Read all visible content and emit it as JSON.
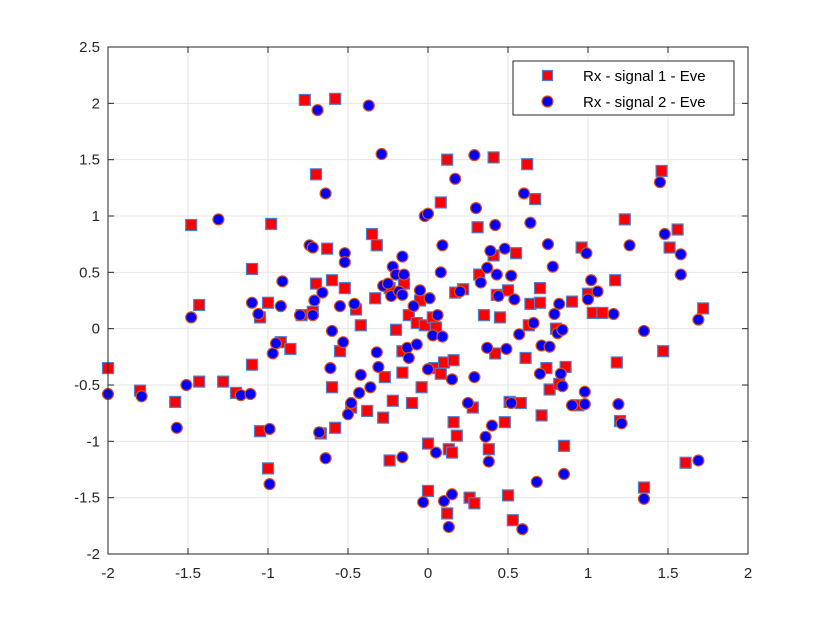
{
  "chart_data": {
    "type": "scatter",
    "title": "",
    "xlabel": "",
    "ylabel": "",
    "xlim": [
      -2,
      2
    ],
    "ylim": [
      -2,
      2.5
    ],
    "xticks": [
      -2,
      -1.5,
      -1,
      -0.5,
      0,
      0.5,
      1,
      1.5,
      2
    ],
    "xtick_labels": [
      "-2",
      "-1.5",
      "-1",
      "-0.5",
      "0",
      "0.5",
      "1",
      "1.5",
      "2"
    ],
    "yticks": [
      -2,
      -1.5,
      -1,
      -0.5,
      0,
      0.5,
      1,
      1.5,
      2,
      2.5
    ],
    "ytick_labels": [
      "-2",
      "-1.5",
      "-1",
      "-0.5",
      "0",
      "0.5",
      "1",
      "1.5",
      "2",
      "2.5"
    ],
    "grid": true,
    "legend_position": "top-right",
    "series": [
      {
        "name": "Rx - signal 1 - Eve",
        "marker": "square",
        "fill_color": "#ff0000",
        "edge_color": "#4d7fd1",
        "points": [
          [
            -2.0,
            -0.35
          ],
          [
            -1.8,
            -0.55
          ],
          [
            -1.58,
            -0.65
          ],
          [
            -1.48,
            0.92
          ],
          [
            -1.43,
            0.21
          ],
          [
            -1.43,
            -0.47
          ],
          [
            -1.28,
            -0.47
          ],
          [
            -1.2,
            -0.57
          ],
          [
            -1.1,
            0.53
          ],
          [
            -1.1,
            -0.32
          ],
          [
            -1.05,
            -0.91
          ],
          [
            -1.05,
            0.1
          ],
          [
            -1.0,
            -1.24
          ],
          [
            -1.0,
            0.23
          ],
          [
            -0.98,
            0.93
          ],
          [
            -0.92,
            -0.12
          ],
          [
            -0.86,
            -0.18
          ],
          [
            -0.79,
            0.12
          ],
          [
            -0.77,
            2.03
          ],
          [
            -0.72,
            0.15
          ],
          [
            -0.7,
            1.37
          ],
          [
            -0.7,
            0.4
          ],
          [
            -0.67,
            -0.93
          ],
          [
            -0.63,
            0.71
          ],
          [
            -0.6,
            0.43
          ],
          [
            -0.6,
            -0.52
          ],
          [
            -0.58,
            2.04
          ],
          [
            -0.58,
            -0.88
          ],
          [
            -0.55,
            -0.2
          ],
          [
            -0.52,
            0.36
          ],
          [
            -0.48,
            -0.7
          ],
          [
            -0.45,
            0.17
          ],
          [
            -0.42,
            0.03
          ],
          [
            -0.38,
            -0.73
          ],
          [
            -0.35,
            0.84
          ],
          [
            -0.33,
            0.27
          ],
          [
            -0.32,
            0.74
          ],
          [
            -0.28,
            -0.79
          ],
          [
            -0.27,
            -0.43
          ],
          [
            -0.24,
            0.36
          ],
          [
            -0.24,
            -1.17
          ],
          [
            -0.22,
            -0.64
          ],
          [
            -0.2,
            -0.01
          ],
          [
            -0.16,
            -0.2
          ],
          [
            -0.16,
            -0.39
          ],
          [
            -0.15,
            0.4
          ],
          [
            -0.12,
            0.12
          ],
          [
            -0.1,
            -0.66
          ],
          [
            -0.07,
            0.05
          ],
          [
            -0.05,
            0.25
          ],
          [
            -0.04,
            -0.52
          ],
          [
            -0.02,
            0.03
          ],
          [
            0.0,
            -1.44
          ],
          [
            0.0,
            -1.02
          ],
          [
            0.03,
            0.1
          ],
          [
            0.04,
            -0.35
          ],
          [
            0.05,
            0.01
          ],
          [
            0.08,
            1.12
          ],
          [
            0.08,
            -0.4
          ],
          [
            0.1,
            -0.3
          ],
          [
            0.12,
            1.5
          ],
          [
            0.12,
            -1.64
          ],
          [
            0.13,
            -1.07
          ],
          [
            0.15,
            -1.1
          ],
          [
            0.16,
            -0.83
          ],
          [
            0.16,
            -0.28
          ],
          [
            0.17,
            0.32
          ],
          [
            0.18,
            -0.95
          ],
          [
            0.22,
            0.35
          ],
          [
            0.26,
            -1.5
          ],
          [
            0.28,
            -0.7
          ],
          [
            0.29,
            -1.55
          ],
          [
            0.31,
            0.9
          ],
          [
            0.32,
            0.48
          ],
          [
            0.35,
            0.12
          ],
          [
            0.38,
            -1.07
          ],
          [
            0.41,
            1.52
          ],
          [
            0.41,
            0.65
          ],
          [
            0.42,
            -0.22
          ],
          [
            0.43,
            0.3
          ],
          [
            0.45,
            0.1
          ],
          [
            0.48,
            -0.83
          ],
          [
            0.5,
            0.34
          ],
          [
            0.5,
            -1.48
          ],
          [
            0.51,
            -0.65
          ],
          [
            0.53,
            -1.7
          ],
          [
            0.55,
            0.67
          ],
          [
            0.58,
            -0.66
          ],
          [
            0.61,
            -0.26
          ],
          [
            0.62,
            1.46
          ],
          [
            0.63,
            0.03
          ],
          [
            0.64,
            0.22
          ],
          [
            0.67,
            1.15
          ],
          [
            0.7,
            0.23
          ],
          [
            0.7,
            0.36
          ],
          [
            0.71,
            -0.77
          ],
          [
            0.74,
            -0.35
          ],
          [
            0.76,
            -0.54
          ],
          [
            0.8,
            0.0
          ],
          [
            0.82,
            -0.49
          ],
          [
            0.85,
            -1.04
          ],
          [
            0.86,
            -0.34
          ],
          [
            0.9,
            0.24
          ],
          [
            0.94,
            -0.68
          ],
          [
            0.96,
            0.72
          ],
          [
            1.0,
            0.31
          ],
          [
            1.03,
            0.14
          ],
          [
            1.09,
            0.14
          ],
          [
            1.17,
            0.43
          ],
          [
            1.18,
            -0.3
          ],
          [
            1.2,
            -0.82
          ],
          [
            1.23,
            0.97
          ],
          [
            1.35,
            -1.41
          ],
          [
            1.46,
            1.4
          ],
          [
            1.47,
            -0.2
          ],
          [
            1.51,
            0.72
          ],
          [
            1.56,
            0.88
          ],
          [
            1.61,
            -1.19
          ],
          [
            1.72,
            0.18
          ]
        ]
      },
      {
        "name": "Rx - signal 2 - Eve",
        "marker": "circle",
        "fill_color": "#0000ff",
        "edge_color": "#d95319",
        "points": [
          [
            -2.0,
            -0.58
          ],
          [
            -1.79,
            -0.6
          ],
          [
            -1.57,
            -0.88
          ],
          [
            -1.51,
            -0.5
          ],
          [
            -1.48,
            0.1
          ],
          [
            -1.31,
            0.97
          ],
          [
            -1.17,
            -0.59
          ],
          [
            -1.11,
            -0.58
          ],
          [
            -1.1,
            0.23
          ],
          [
            -1.06,
            0.13
          ],
          [
            -0.99,
            -0.89
          ],
          [
            -0.99,
            -1.38
          ],
          [
            -0.97,
            -0.22
          ],
          [
            -0.95,
            -0.13
          ],
          [
            -0.92,
            0.2
          ],
          [
            -0.91,
            0.42
          ],
          [
            -0.8,
            0.12
          ],
          [
            -0.74,
            0.74
          ],
          [
            -0.72,
            0.72
          ],
          [
            -0.72,
            0.12
          ],
          [
            -0.71,
            0.25
          ],
          [
            -0.69,
            1.94
          ],
          [
            -0.68,
            -0.92
          ],
          [
            -0.66,
            0.32
          ],
          [
            -0.64,
            -1.15
          ],
          [
            -0.64,
            1.2
          ],
          [
            -0.61,
            -0.35
          ],
          [
            -0.6,
            -0.02
          ],
          [
            -0.55,
            0.2
          ],
          [
            -0.53,
            -0.12
          ],
          [
            -0.52,
            0.67
          ],
          [
            -0.52,
            0.59
          ],
          [
            -0.5,
            -0.76
          ],
          [
            -0.48,
            -0.66
          ],
          [
            -0.46,
            0.22
          ],
          [
            -0.43,
            -0.57
          ],
          [
            -0.42,
            -0.41
          ],
          [
            -0.37,
            1.98
          ],
          [
            -0.36,
            -0.52
          ],
          [
            -0.32,
            -0.21
          ],
          [
            -0.31,
            -0.34
          ],
          [
            -0.29,
            1.55
          ],
          [
            -0.28,
            0.38
          ],
          [
            -0.25,
            0.4
          ],
          [
            -0.23,
            0.29
          ],
          [
            -0.22,
            0.55
          ],
          [
            -0.2,
            0.48
          ],
          [
            -0.18,
            0.33
          ],
          [
            -0.16,
            0.3
          ],
          [
            -0.16,
            -1.14
          ],
          [
            -0.16,
            0.64
          ],
          [
            -0.15,
            0.48
          ],
          [
            -0.13,
            -0.17
          ],
          [
            -0.12,
            -0.26
          ],
          [
            -0.09,
            0.2
          ],
          [
            -0.07,
            -0.14
          ],
          [
            -0.05,
            0.34
          ],
          [
            -0.03,
            -1.54
          ],
          [
            -0.02,
            1.0
          ],
          [
            0.0,
            -0.36
          ],
          [
            0.0,
            1.02
          ],
          [
            0.01,
            0.27
          ],
          [
            0.03,
            -0.06
          ],
          [
            0.05,
            -1.1
          ],
          [
            0.06,
            0.12
          ],
          [
            0.08,
            0.5
          ],
          [
            0.09,
            -0.07
          ],
          [
            0.09,
            0.74
          ],
          [
            0.1,
            -1.53
          ],
          [
            0.13,
            -1.76
          ],
          [
            0.15,
            -0.45
          ],
          [
            0.15,
            -1.47
          ],
          [
            0.17,
            1.33
          ],
          [
            0.2,
            0.33
          ],
          [
            0.25,
            -0.66
          ],
          [
            0.29,
            -0.43
          ],
          [
            0.29,
            1.54
          ],
          [
            0.3,
            1.07
          ],
          [
            0.33,
            0.41
          ],
          [
            0.36,
            -0.96
          ],
          [
            0.37,
            -0.17
          ],
          [
            0.37,
            0.54
          ],
          [
            0.38,
            -1.18
          ],
          [
            0.39,
            0.69
          ],
          [
            0.4,
            -0.86
          ],
          [
            0.42,
            0.92
          ],
          [
            0.43,
            0.48
          ],
          [
            0.44,
            0.29
          ],
          [
            0.48,
            0.71
          ],
          [
            0.49,
            -0.18
          ],
          [
            0.52,
            0.47
          ],
          [
            0.52,
            -0.66
          ],
          [
            0.54,
            0.26
          ],
          [
            0.57,
            -0.05
          ],
          [
            0.59,
            -1.78
          ],
          [
            0.6,
            1.2
          ],
          [
            0.64,
            0.94
          ],
          [
            0.66,
            0.05
          ],
          [
            0.68,
            -1.36
          ],
          [
            0.7,
            -0.4
          ],
          [
            0.71,
            -0.15
          ],
          [
            0.75,
            0.75
          ],
          [
            0.76,
            -0.16
          ],
          [
            0.78,
            0.55
          ],
          [
            0.79,
            0.13
          ],
          [
            0.81,
            -0.04
          ],
          [
            0.82,
            0.22
          ],
          [
            0.83,
            -0.4
          ],
          [
            0.84,
            -0.01
          ],
          [
            0.84,
            -0.51
          ],
          [
            0.85,
            -1.29
          ],
          [
            0.9,
            -0.68
          ],
          [
            0.98,
            -0.56
          ],
          [
            0.98,
            -0.67
          ],
          [
            0.99,
            0.67
          ],
          [
            1.0,
            0.26
          ],
          [
            1.02,
            0.43
          ],
          [
            1.06,
            0.33
          ],
          [
            1.16,
            0.13
          ],
          [
            1.19,
            -0.67
          ],
          [
            1.21,
            -0.84
          ],
          [
            1.26,
            0.74
          ],
          [
            1.35,
            -0.02
          ],
          [
            1.35,
            -1.51
          ],
          [
            1.45,
            1.3
          ],
          [
            1.48,
            0.84
          ],
          [
            1.58,
            0.66
          ],
          [
            1.58,
            0.48
          ],
          [
            1.69,
            -1.17
          ],
          [
            1.69,
            0.08
          ]
        ]
      }
    ]
  },
  "legend": {
    "items": [
      {
        "label": "Rx - signal 1 - Eve",
        "marker": "square"
      },
      {
        "label": "Rx - signal 2 - Eve",
        "marker": "circle"
      }
    ]
  }
}
